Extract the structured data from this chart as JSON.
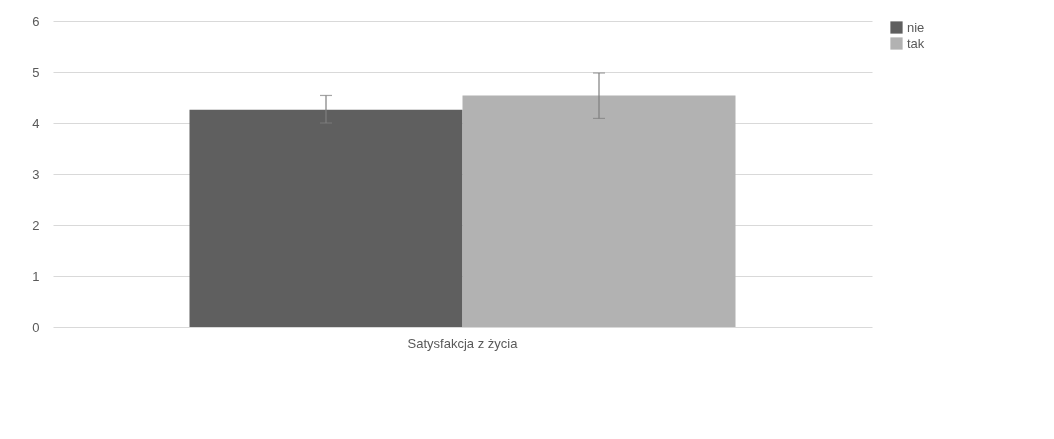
{
  "chart_data": {
    "type": "bar",
    "categories": [
      "Satysfakcja z życia"
    ],
    "series": [
      {
        "name": "nie",
        "color": "#5f5f5f",
        "values": [
          4.26
        ],
        "errors": [
          [
            4.0,
            4.54
          ]
        ]
      },
      {
        "name": "tak",
        "color": "#b2b2b2",
        "values": [
          4.54
        ],
        "errors": [
          [
            4.09,
            4.98
          ]
        ]
      }
    ],
    "ylim": [
      0,
      6
    ],
    "yticks": [
      0,
      1,
      2,
      3,
      4,
      5,
      6
    ],
    "grid": "y",
    "legend": "right"
  }
}
